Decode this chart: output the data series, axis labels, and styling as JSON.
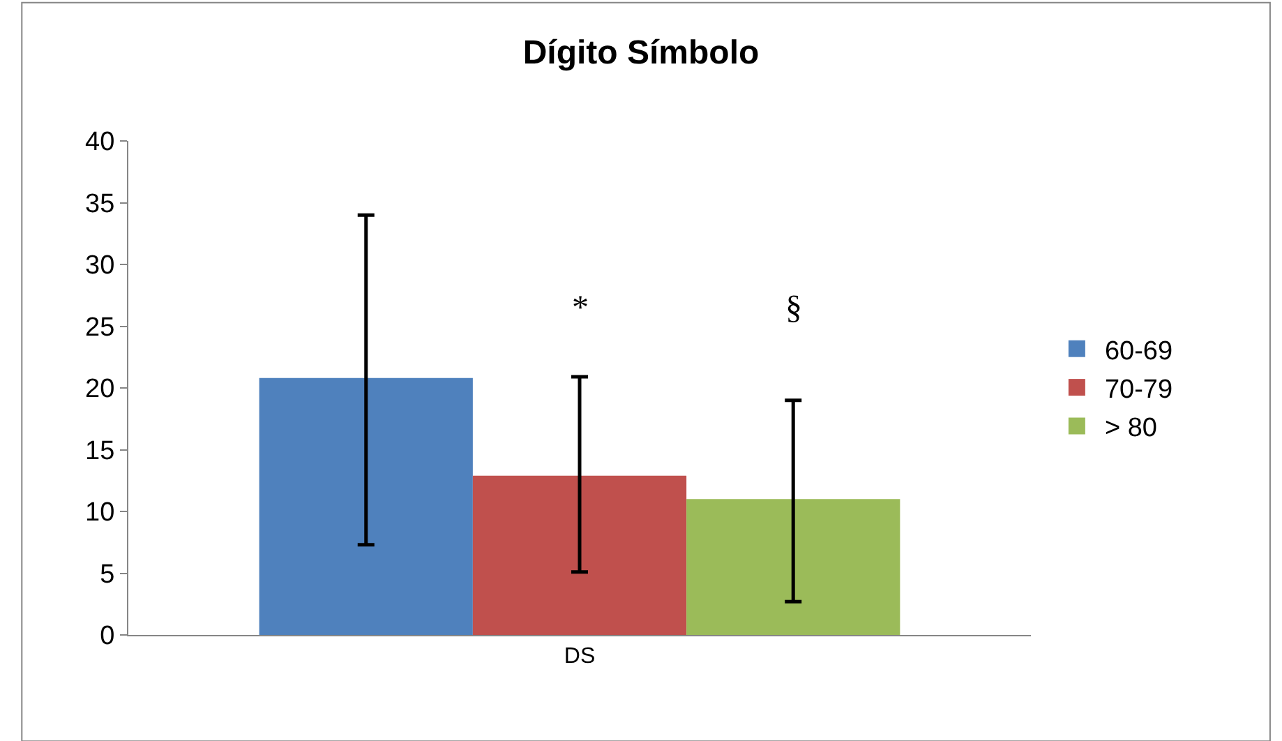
{
  "chart_data": {
    "type": "bar",
    "title": "Dígito Símbolo",
    "categories": [
      "DS"
    ],
    "series": [
      {
        "name": "60-69",
        "color": "#4f81bd",
        "values": [
          20.8
        ],
        "errors": [
          [
            7.3,
            34.0
          ]
        ]
      },
      {
        "name": "70-79",
        "color": "#c0504d",
        "values": [
          12.9
        ],
        "errors": [
          [
            5.1,
            20.9
          ]
        ]
      },
      {
        "name": "> 80",
        "color": "#9bbb59",
        "values": [
          11.0
        ],
        "errors": [
          [
            2.7,
            19.0
          ]
        ]
      }
    ],
    "annotations": [
      "*",
      "§"
    ],
    "ylim": [
      0,
      40
    ],
    "yticks": [
      0,
      5,
      10,
      15,
      20,
      25,
      30,
      35,
      40
    ],
    "legend": "right"
  }
}
